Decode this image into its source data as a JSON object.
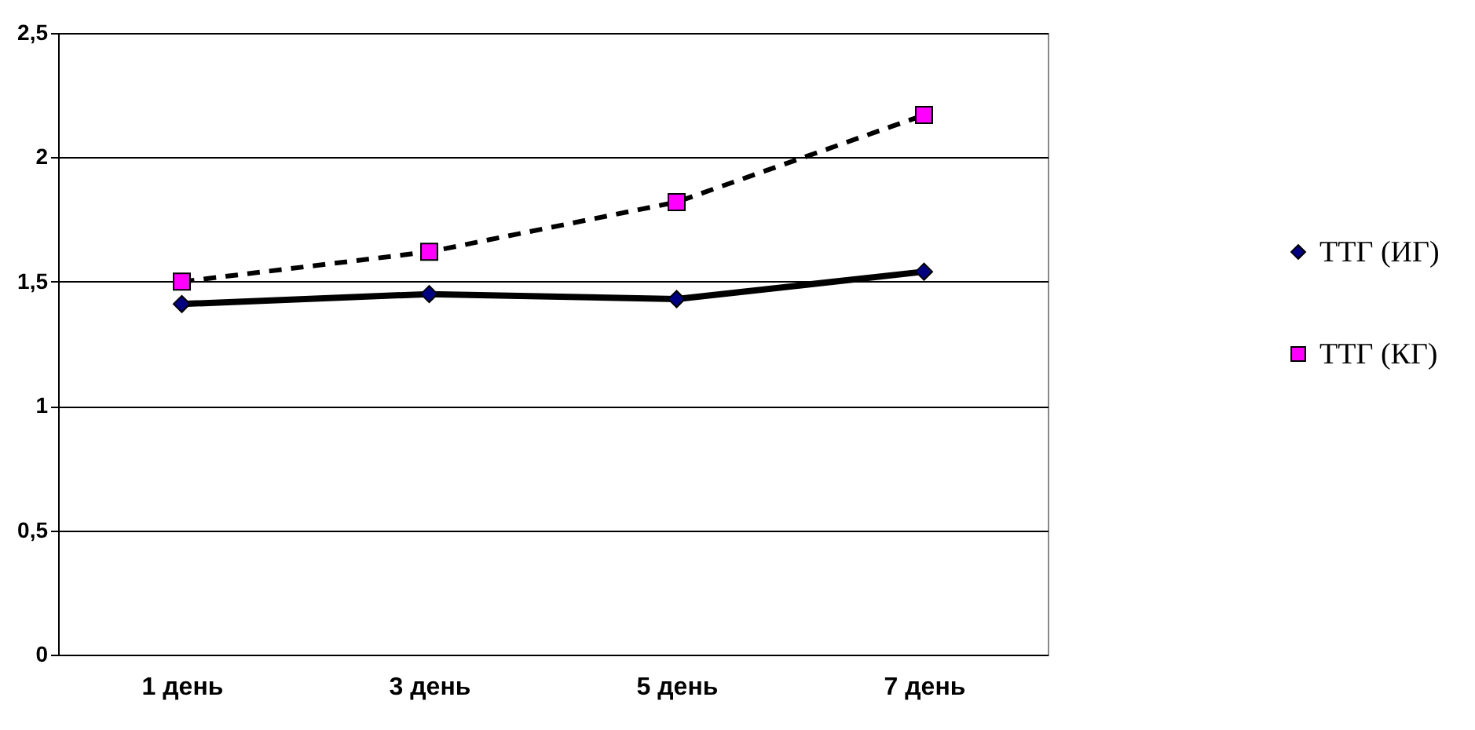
{
  "chart_data": {
    "type": "line",
    "categories": [
      "1 день",
      "3 день",
      "5 день",
      "7 день"
    ],
    "series": [
      {
        "name": "ТТГ (ИГ)",
        "color": "#000080",
        "marker": "diamond",
        "line_style": "solid",
        "values": [
          1.41,
          1.45,
          1.43,
          1.54
        ]
      },
      {
        "name": "ТТГ (КГ)",
        "color": "#ff00ff",
        "marker": "square",
        "line_style": "dashed",
        "values": [
          1.5,
          1.62,
          1.82,
          2.17
        ]
      }
    ],
    "ylim": [
      0,
      2.5
    ],
    "yticks": [
      0,
      {
        "value": 0.5,
        "label": "0,5"
      },
      1,
      {
        "value": 1.5,
        "label": "1,5"
      },
      2,
      {
        "value": 2.5,
        "label": "2,5"
      }
    ],
    "grid": "y",
    "legend": "right"
  }
}
